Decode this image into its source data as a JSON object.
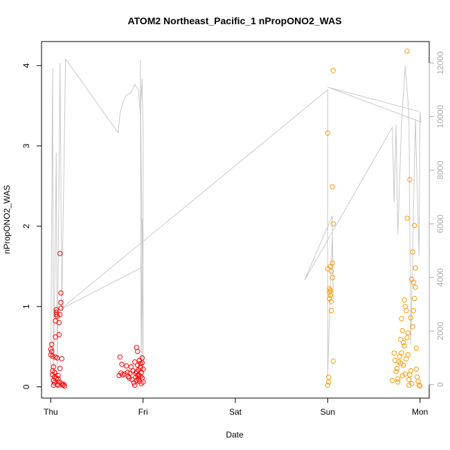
{
  "chart_data": {
    "type": "scatter",
    "title": "ATOM2 Northeast_Pacific_1 nPropONO2_WAS",
    "xlabel": "Date",
    "ylabel": "nPropONO2_WAS",
    "x_ticks": [
      "Thu",
      "Fri",
      "Sat",
      "Sun",
      "Mon"
    ],
    "y_ticks": [
      "0",
      "1",
      "2",
      "3",
      "4"
    ],
    "y2_ticks": [
      "0",
      "2000",
      "4000",
      "6000",
      "8000",
      "10000",
      "12000"
    ],
    "xlim": [
      -0.1,
      4.1
    ],
    "ylim": [
      -0.14,
      4.3
    ],
    "y2lim": [
      -500,
      12800
    ],
    "colors": {
      "series1": "#ff0000",
      "series2": "#ff9900",
      "altitude": "#c8c8c8"
    },
    "series": [
      {
        "color": "#ff0000",
        "points": [
          [
            0.0,
            0.4
          ],
          [
            0.0,
            0.47
          ],
          [
            0.01,
            0.53
          ],
          [
            0.01,
            0.44
          ],
          [
            0.02,
            0.2
          ],
          [
            0.02,
            0.15
          ],
          [
            0.03,
            0.08
          ],
          [
            0.03,
            0.02
          ],
          [
            0.04,
            0.05
          ],
          [
            0.04,
            0.12
          ],
          [
            0.05,
            0.37
          ],
          [
            0.05,
            0.62
          ],
          [
            0.05,
            0.82
          ],
          [
            0.06,
            0.9
          ],
          [
            0.06,
            0.93
          ],
          [
            0.06,
            0.96
          ],
          [
            0.07,
            0.88
          ],
          [
            0.07,
            0.36
          ],
          [
            0.08,
            0.14
          ],
          [
            0.08,
            0.1
          ],
          [
            0.09,
            0.65
          ],
          [
            0.09,
            0.8
          ],
          [
            0.09,
            0.06
          ],
          [
            0.1,
            1.66
          ],
          [
            0.1,
            0.23
          ],
          [
            0.1,
            0.9
          ],
          [
            0.11,
            1.17
          ],
          [
            0.11,
            1.05
          ],
          [
            0.11,
            0.98
          ],
          [
            0.12,
            0.35
          ],
          [
            0.12,
            0.04
          ],
          [
            0.13,
            0.02
          ],
          [
            0.14,
            0.03
          ],
          [
            0.15,
            0.01
          ],
          [
            0.03,
            0.25
          ],
          [
            0.04,
            0.18
          ],
          [
            0.06,
            0.11
          ],
          [
            0.08,
            0.02
          ],
          [
            0.02,
            0.38
          ],
          [
            0.07,
            0.03
          ],
          [
            0.74,
            0.14
          ],
          [
            0.75,
            0.37
          ],
          [
            0.76,
            0.17
          ],
          [
            0.77,
            0.28
          ],
          [
            0.78,
            0.15
          ],
          [
            0.8,
            0.16
          ],
          [
            0.82,
            0.26
          ],
          [
            0.83,
            0.18
          ],
          [
            0.84,
            0.13
          ],
          [
            0.85,
            0.11
          ],
          [
            0.86,
            0.17
          ],
          [
            0.87,
            0.25
          ],
          [
            0.88,
            0.09
          ],
          [
            0.89,
            0.2
          ],
          [
            0.9,
            0.05
          ],
          [
            0.91,
            0.31
          ],
          [
            0.92,
            0.17
          ],
          [
            0.92,
            0.12
          ],
          [
            0.93,
            0.08
          ],
          [
            0.93,
            0.49
          ],
          [
            0.94,
            0.44
          ],
          [
            0.94,
            0.27
          ],
          [
            0.95,
            0.21
          ],
          [
            0.95,
            0.15
          ],
          [
            0.96,
            0.33
          ],
          [
            0.96,
            0.07
          ],
          [
            0.97,
            0.13
          ],
          [
            0.97,
            0.29
          ],
          [
            0.98,
            0.04
          ],
          [
            0.98,
            0.18
          ],
          [
            0.99,
            0.36
          ],
          [
            0.99,
            0.11
          ],
          [
            1.0,
            0.22
          ],
          [
            1.0,
            0.06
          ],
          [
            0.91,
            0.02
          ],
          [
            0.93,
            0.19
          ],
          [
            0.95,
            0.1
          ],
          [
            0.97,
            0.24
          ],
          [
            0.99,
            0.3
          ],
          [
            0.94,
            0.14
          ]
        ]
      },
      {
        "color": "#ff9900",
        "points": [
          [
            3.0,
            3.16
          ],
          [
            3.0,
            1.47
          ],
          [
            3.0,
            0.02
          ],
          [
            3.01,
            0.06
          ],
          [
            3.01,
            0.12
          ],
          [
            3.02,
            1.18
          ],
          [
            3.02,
            1.1
          ],
          [
            3.02,
            1.22
          ],
          [
            3.03,
            1.14
          ],
          [
            3.03,
            1.5
          ],
          [
            3.04,
            0.95
          ],
          [
            3.04,
            1.06
          ],
          [
            3.05,
            1.54
          ],
          [
            3.05,
            1.36
          ],
          [
            3.05,
            2.49
          ],
          [
            3.06,
            2.03
          ],
          [
            3.06,
            3.94
          ],
          [
            3.06,
            0.32
          ],
          [
            3.04,
            1.44
          ],
          [
            3.03,
            1.2
          ],
          [
            3.7,
            0.08
          ],
          [
            3.72,
            0.42
          ],
          [
            3.73,
            0.33
          ],
          [
            3.74,
            0.19
          ],
          [
            3.75,
            0.23
          ],
          [
            3.76,
            0.1
          ],
          [
            3.77,
            0.31
          ],
          [
            3.78,
            0.38
          ],
          [
            3.79,
            0.59
          ],
          [
            3.8,
            0.85
          ],
          [
            3.81,
            0.7
          ],
          [
            3.82,
            0.55
          ],
          [
            3.83,
            1.08
          ],
          [
            3.84,
            1.0
          ],
          [
            3.85,
            0.95
          ],
          [
            3.86,
            0.61
          ],
          [
            3.87,
            0.4
          ],
          [
            3.88,
            0.02
          ],
          [
            3.89,
            0.15
          ],
          [
            3.9,
            0.2
          ],
          [
            3.91,
            1.34
          ],
          [
            3.92,
            1.68
          ],
          [
            3.93,
            1.3
          ],
          [
            3.94,
            2.01
          ],
          [
            3.95,
            1.48
          ],
          [
            3.96,
            0.48
          ],
          [
            3.97,
            0.12
          ],
          [
            3.98,
            0.07
          ],
          [
            3.99,
            0.02
          ],
          [
            4.0,
            0.01
          ],
          [
            3.86,
            2.1
          ],
          [
            3.89,
            2.58
          ],
          [
            3.86,
            4.18
          ],
          [
            3.93,
            0.95
          ],
          [
            3.95,
            1.24
          ],
          [
            3.82,
            0.27
          ],
          [
            3.76,
            0.06
          ],
          [
            3.8,
            0.42
          ],
          [
            3.84,
            0.16
          ],
          [
            3.9,
            0.86
          ],
          [
            3.92,
            0.75
          ],
          [
            3.87,
            0.67
          ],
          [
            3.79,
            0.29
          ],
          [
            3.83,
            0.51
          ],
          [
            3.85,
            0.35
          ],
          [
            3.88,
            0.09
          ],
          [
            3.91,
            0.04
          ],
          [
            3.94,
            1.1
          ],
          [
            3.96,
            0.22
          ],
          [
            3.81,
            0.14
          ]
        ]
      }
    ],
    "altitude_line": [
      [
        0.0,
        50
      ],
      [
        0.02,
        11800
      ],
      [
        0.03,
        250
      ],
      [
        0.06,
        8650
      ],
      [
        0.07,
        300
      ],
      [
        0.1,
        12000
      ],
      [
        0.12,
        2800
      ],
      [
        0.16,
        12150
      ],
      [
        0.73,
        9400
      ],
      [
        0.75,
        10100
      ],
      [
        0.78,
        10500
      ],
      [
        0.82,
        10800
      ],
      [
        0.87,
        10900
      ],
      [
        0.91,
        11200
      ],
      [
        0.95,
        11000
      ],
      [
        0.97,
        10100
      ],
      [
        0.99,
        11400
      ],
      [
        1.0,
        9400
      ],
      [
        1.0,
        120
      ],
      [
        0.97,
        12100
      ],
      [
        0.98,
        50
      ],
      [
        0.99,
        6200
      ],
      [
        1.0,
        4400
      ],
      [
        0.1,
        2800
      ],
      [
        3.0,
        11000
      ],
      [
        3.0,
        300
      ],
      [
        3.03,
        3800
      ],
      [
        3.05,
        5500
      ],
      [
        3.06,
        3200
      ],
      [
        3.05,
        6300
      ],
      [
        2.75,
        3900
      ],
      [
        3.7,
        9600
      ],
      [
        3.72,
        6800
      ],
      [
        3.74,
        9700
      ],
      [
        3.76,
        5600
      ],
      [
        3.8,
        9800
      ],
      [
        3.84,
        11900
      ],
      [
        3.88,
        10100
      ],
      [
        3.9,
        1500
      ],
      [
        3.95,
        9900
      ],
      [
        3.99,
        4800
      ],
      [
        4.0,
        10200
      ],
      [
        4.01,
        9800
      ],
      [
        3.0,
        11100
      ],
      [
        3.98,
        10200
      ]
    ]
  }
}
